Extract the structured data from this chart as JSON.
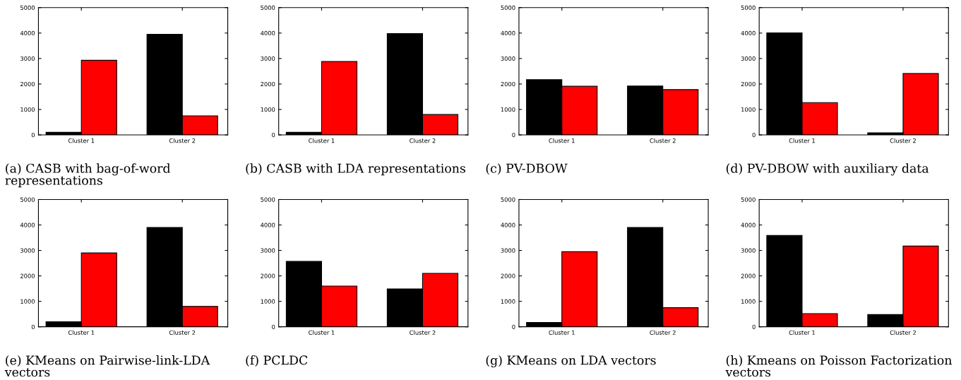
{
  "chart_data": [
    {
      "type": "bar",
      "title": "(a) CASB with bag-of-word representations",
      "categories": [
        "Cluster 1",
        "Cluster 2"
      ],
      "series": [
        {
          "color": "#000000",
          "values": [
            100,
            3950
          ]
        },
        {
          "color": "#ff0000",
          "values": [
            2930,
            750
          ]
        }
      ],
      "ylim": [
        0,
        5000
      ],
      "yticks": [
        0,
        1000,
        2000,
        3000,
        4000,
        5000
      ],
      "grid": false,
      "legend": false
    },
    {
      "type": "bar",
      "title": "(b) CASB with LDA representations",
      "categories": [
        "Cluster 1",
        "Cluster 2"
      ],
      "series": [
        {
          "color": "#000000",
          "values": [
            100,
            3980
          ]
        },
        {
          "color": "#ff0000",
          "values": [
            2880,
            800
          ]
        }
      ],
      "ylim": [
        0,
        5000
      ],
      "yticks": [
        0,
        1000,
        2000,
        3000,
        4000,
        5000
      ],
      "grid": false,
      "legend": false
    },
    {
      "type": "bar",
      "title": "(c) PV-DBOW",
      "categories": [
        "Cluster 1",
        "Cluster 2"
      ],
      "series": [
        {
          "color": "#000000",
          "values": [
            2170,
            1920
          ]
        },
        {
          "color": "#ff0000",
          "values": [
            1910,
            1780
          ]
        }
      ],
      "ylim": [
        0,
        5000
      ],
      "yticks": [
        0,
        1000,
        2000,
        3000,
        4000,
        5000
      ],
      "grid": false,
      "legend": false
    },
    {
      "type": "bar",
      "title": "(d) PV-DBOW with auxiliary data",
      "categories": [
        "Cluster 1",
        "Cluster 2"
      ],
      "series": [
        {
          "color": "#000000",
          "values": [
            4010,
            80
          ]
        },
        {
          "color": "#ff0000",
          "values": [
            1270,
            2410
          ]
        }
      ],
      "ylim": [
        0,
        5000
      ],
      "yticks": [
        0,
        1000,
        2000,
        3000,
        4000,
        5000
      ],
      "grid": false,
      "legend": false
    },
    {
      "type": "bar",
      "title": "(e) KMeans on Pairwise-link-LDA vectors",
      "categories": [
        "Cluster 1",
        "Cluster 2"
      ],
      "series": [
        {
          "color": "#000000",
          "values": [
            200,
            3900
          ]
        },
        {
          "color": "#ff0000",
          "values": [
            2900,
            800
          ]
        }
      ],
      "ylim": [
        0,
        5000
      ],
      "yticks": [
        0,
        1000,
        2000,
        3000,
        4000,
        5000
      ],
      "grid": false,
      "legend": false
    },
    {
      "type": "bar",
      "title": "(f) PCLDC",
      "categories": [
        "Cluster 1",
        "Cluster 2"
      ],
      "series": [
        {
          "color": "#000000",
          "values": [
            2570,
            1490
          ]
        },
        {
          "color": "#ff0000",
          "values": [
            1600,
            2100
          ]
        }
      ],
      "ylim": [
        0,
        5000
      ],
      "yticks": [
        0,
        1000,
        2000,
        3000,
        4000,
        5000
      ],
      "grid": false,
      "legend": false
    },
    {
      "type": "bar",
      "title": "(g) KMeans on LDA vectors",
      "categories": [
        "Cluster 1",
        "Cluster 2"
      ],
      "series": [
        {
          "color": "#000000",
          "values": [
            170,
            3900
          ]
        },
        {
          "color": "#ff0000",
          "values": [
            2950,
            750
          ]
        }
      ],
      "ylim": [
        0,
        5000
      ],
      "yticks": [
        0,
        1000,
        2000,
        3000,
        4000,
        5000
      ],
      "grid": false,
      "legend": false
    },
    {
      "type": "bar",
      "title": "(h) Kmeans on Poisson Factorization vectors",
      "categories": [
        "Cluster 1",
        "Cluster 2"
      ],
      "series": [
        {
          "color": "#000000",
          "values": [
            3590,
            480
          ]
        },
        {
          "color": "#ff0000",
          "values": [
            520,
            3170
          ]
        }
      ],
      "ylim": [
        0,
        5000
      ],
      "yticks": [
        0,
        1000,
        2000,
        3000,
        4000,
        5000
      ],
      "grid": false,
      "legend": false
    }
  ]
}
